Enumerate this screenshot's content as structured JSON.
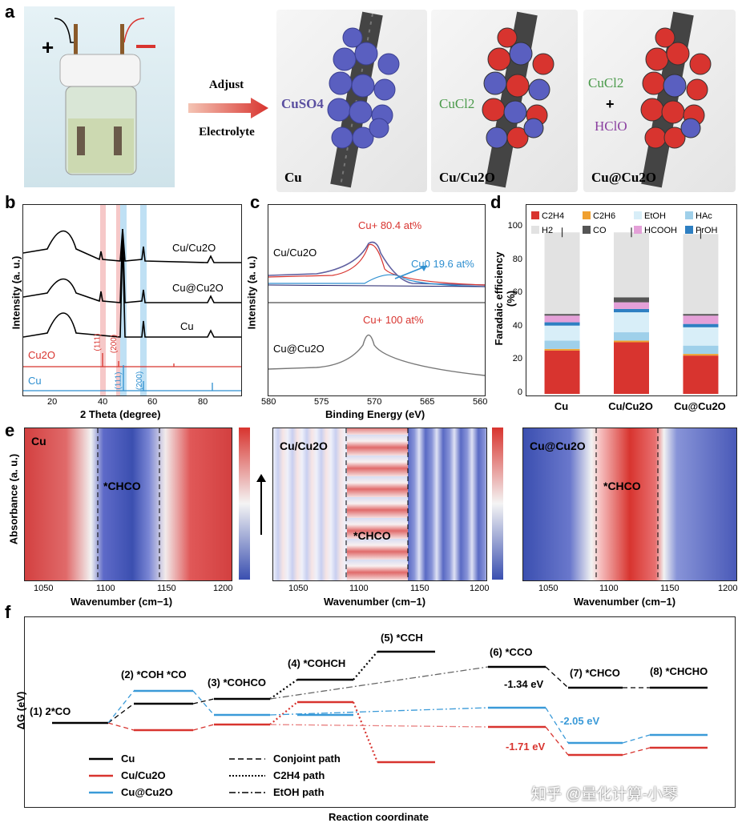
{
  "panel_labels": {
    "a": "a",
    "b": "b",
    "c": "c",
    "d": "d",
    "e": "e",
    "f": "f"
  },
  "panel_a": {
    "arrow_top": "Adjust",
    "arrow_bottom": "Electrolyte",
    "cells": [
      {
        "electrolyte": "CuSO4",
        "electrolyte_sub": "",
        "product": "Cu",
        "color": "#5a4fa0"
      },
      {
        "electrolyte": "CuCl2",
        "electrolyte_sub": "",
        "product": "Cu/Cu2O",
        "color": "#4a9a4a"
      },
      {
        "electrolyte": "CuCl2",
        "extra": "HClO",
        "plus": "+",
        "product": "Cu@Cu2O",
        "color": "#4a9a4a",
        "extra_color": "#8a3fa0"
      }
    ]
  },
  "panel_b": {
    "ylabel": "Intensity (a. u.)",
    "xlabel": "2 Theta (degree)",
    "xticks": [
      "20",
      "40",
      "60",
      "80"
    ],
    "traces": [
      "Cu/Cu2O",
      "Cu@Cu2O",
      "Cu"
    ],
    "ref_cu2o": "Cu2O",
    "ref_cu": "Cu",
    "peaks": [
      "(111)",
      "(200)",
      "(111)",
      "(200)"
    ]
  },
  "panel_c": {
    "ylabel": "Intensity (a. u.)",
    "xlabel": "Binding Energy (eV)",
    "xticks": [
      "580",
      "575",
      "570",
      "565",
      "560"
    ],
    "top_sample": "Cu/Cu2O",
    "bottom_sample": "Cu@Cu2O",
    "cu_plus_top": "Cu+ 80.4 at%",
    "cu0": "Cu0 19.6 at%",
    "cu_plus_bottom": "Cu+ 100 at%"
  },
  "chart_data": {
    "type": "bar",
    "title": "",
    "ylabel": "Faradaic efficiency (%)",
    "xlabel": "",
    "categories": [
      "Cu",
      "Cu/Cu2O",
      "Cu@Cu2O"
    ],
    "yticks": [
      "0",
      "20",
      "40",
      "60",
      "80",
      "100"
    ],
    "ylim": [
      0,
      100
    ],
    "legend": [
      "C2H4",
      "C2H6",
      "EtOH",
      "HAc",
      "H2",
      "CO",
      "HCOOH",
      "PrOH"
    ],
    "series": [
      {
        "name": "C2H4",
        "values": [
          26,
          31,
          23
        ],
        "color": "#d8342f"
      },
      {
        "name": "C2H6",
        "values": [
          1,
          1,
          1
        ],
        "color": "#f0a030"
      },
      {
        "name": "HAc",
        "values": [
          5,
          5,
          5
        ],
        "color": "#9fd0ea"
      },
      {
        "name": "EtOH",
        "values": [
          9,
          12,
          11
        ],
        "color": "#d8eef8"
      },
      {
        "name": "PrOH",
        "values": [
          2,
          2,
          2
        ],
        "color": "#2e7fc2"
      },
      {
        "name": "HCOOH",
        "values": [
          4,
          4,
          5
        ],
        "color": "#e4a0d8"
      },
      {
        "name": "CO",
        "values": [
          1,
          3,
          1
        ],
        "color": "#555555"
      },
      {
        "name": "H2",
        "values": [
          49,
          39,
          48
        ],
        "color": "#e2e2e2"
      }
    ]
  },
  "panel_e": {
    "ylabel": "Absorbance (a. u.)",
    "xlabel": "Wavenumber (cm−1)",
    "xticks": [
      "1050",
      "1100",
      "1150",
      "1200"
    ],
    "maps": [
      {
        "sample": "Cu",
        "band": "*CHCO"
      },
      {
        "sample": "Cu/Cu2O",
        "band": "*CHCO"
      },
      {
        "sample": "Cu@Cu2O",
        "band": "*CHCO"
      }
    ]
  },
  "panel_f": {
    "ylabel": "ΔG (eV)",
    "xlabel": "Reaction coordinate",
    "states": [
      "(1) 2*CO",
      "(2) *COH *CO",
      "(3) *COHCO",
      "(4) *COHCH",
      "(5) *CCH",
      "(6) *CCO",
      "(7) *CHCO",
      "(8) *CHCHO"
    ],
    "energies": [
      "-1.34 eV",
      "-2.05 eV",
      "-1.71 eV"
    ],
    "legend_samples": [
      "Cu",
      "Cu/Cu2O",
      "Cu@Cu2O"
    ],
    "legend_paths": [
      "Conjoint path",
      "C2H4  path",
      "EtOH path"
    ]
  },
  "watermark": "知乎 @量化计算-小琴"
}
